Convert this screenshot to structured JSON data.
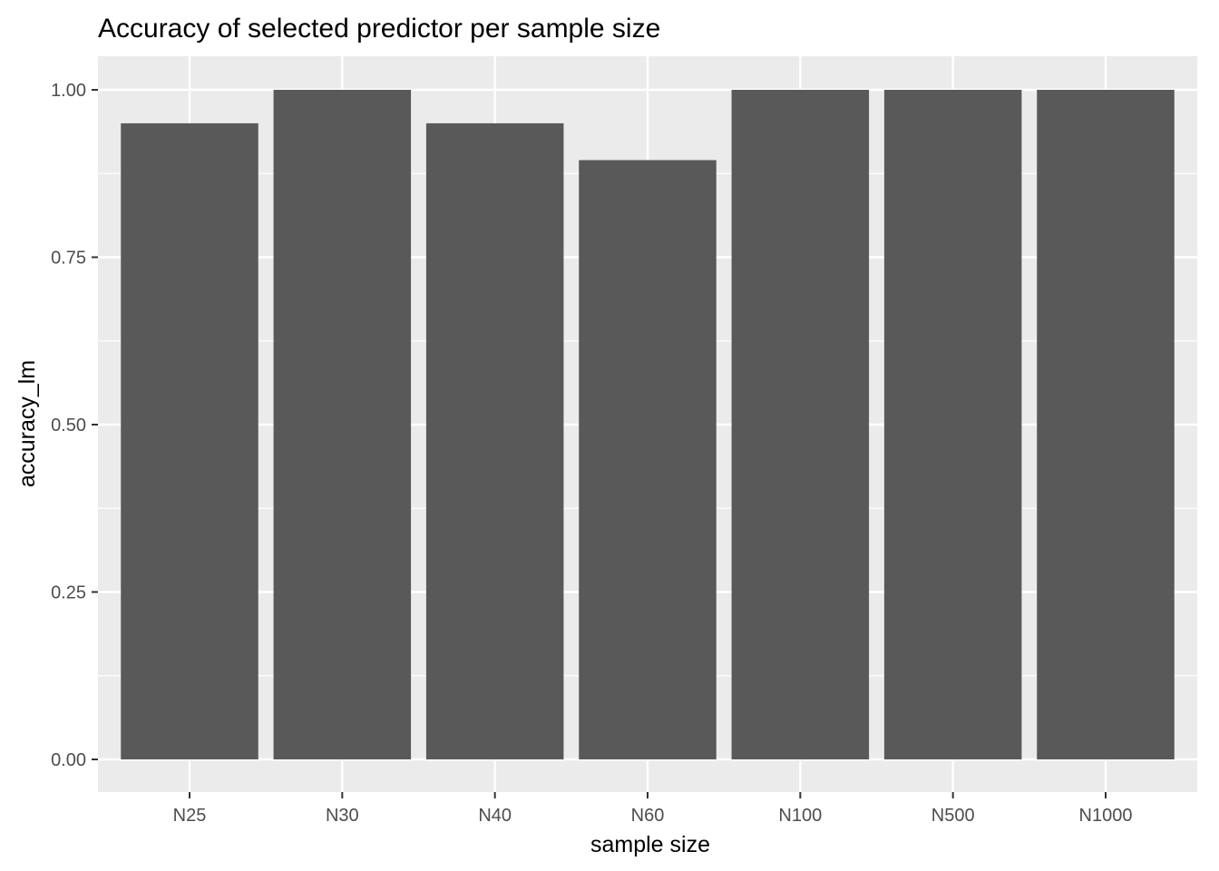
{
  "chart_data": {
    "type": "bar",
    "title": "Accuracy of selected predictor per sample size",
    "xlabel": "sample size",
    "ylabel": "accuracy_lm",
    "categories": [
      "N25",
      "N30",
      "N40",
      "N60",
      "N100",
      "N500",
      "N1000"
    ],
    "values": [
      0.95,
      1.0,
      0.95,
      0.895,
      1.0,
      1.0,
      1.0
    ],
    "ylim": [
      0,
      1.05
    ],
    "yticks": [
      0,
      0.25,
      0.5,
      0.75,
      1.0
    ],
    "ytick_labels": [
      "0.00",
      "0.25",
      "0.50",
      "0.75",
      "1.00"
    ],
    "grid": true,
    "legend": "none",
    "colors": {
      "bar": "#595959",
      "panel": "#ebebeb",
      "grid": "#ffffff",
      "tick": "#333333"
    }
  }
}
